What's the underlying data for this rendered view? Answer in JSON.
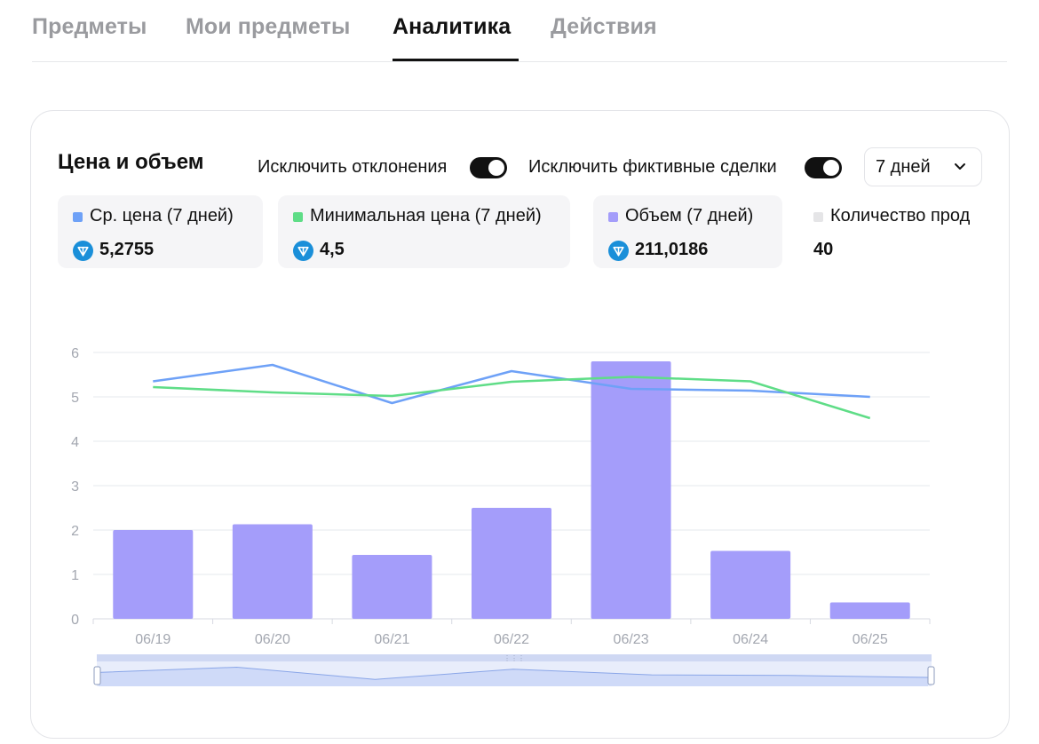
{
  "tabs": [
    {
      "label": "Предметы",
      "active": false
    },
    {
      "label": "Мои предметы",
      "active": false
    },
    {
      "label": "Аналитика",
      "active": true
    },
    {
      "label": "Действия",
      "active": false
    }
  ],
  "card": {
    "title": "Цена и объем",
    "toggle_outliers_label": "Исключить отклонения",
    "toggle_outliers_on": true,
    "toggle_fake_label": "Исключить фиктивные сделки",
    "toggle_fake_on": true,
    "period": "7 дней"
  },
  "stats": [
    {
      "label": "Ср. цена (7 дней)",
      "value": "5,2755",
      "color": "#6ea1f7",
      "icon": "ton-coin-icon"
    },
    {
      "label": "Минимальная цена (7 дней)",
      "value": "4,5",
      "color": "#5fdd87",
      "icon": "ton-coin-icon"
    },
    {
      "label": "Объем (7 дней)",
      "value": "211,0186",
      "color": "#a49dfa",
      "icon": "ton-coin-icon"
    },
    {
      "label": "Количество прод",
      "value": "40",
      "color": "#e5e5e7",
      "icon": ""
    }
  ],
  "colors": {
    "avg_price": "#6ea1f7",
    "min_price": "#5fdd87",
    "volume": "#a49dfa",
    "coin": "#1a8fd9"
  },
  "chart_data": {
    "type": "bar",
    "categories": [
      "06/19",
      "06/20",
      "06/21",
      "06/22",
      "06/23",
      "06/24",
      "06/25"
    ],
    "ylim": [
      0,
      6
    ],
    "yticks": [
      0,
      1,
      2,
      3,
      4,
      5,
      6
    ],
    "series": [
      {
        "values": [
          2.0,
          2.13,
          1.44,
          2.5,
          5.8,
          1.53,
          0.37
        ],
        "kind": "bar",
        "color": "#a49dfa"
      },
      {
        "values": [
          5.35,
          5.72,
          4.86,
          5.58,
          5.18,
          5.14,
          5.0
        ],
        "kind": "line",
        "color": "#6ea1f7"
      },
      {
        "values": [
          5.22,
          5.1,
          5.02,
          5.34,
          5.45,
          5.35,
          4.52
        ],
        "kind": "line",
        "color": "#5fdd87"
      }
    ],
    "grid": true,
    "slider": true
  }
}
